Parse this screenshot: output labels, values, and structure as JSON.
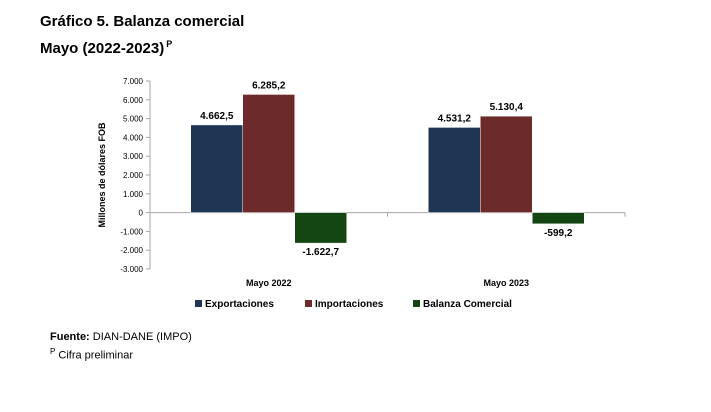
{
  "title": "Gráfico 5. Balanza comercial",
  "subtitle": "Mayo (2022-2023)",
  "subtitle_sup": "P",
  "footer": {
    "source_label": "Fuente:",
    "source_text": "DIAN-DANE (IMPO)",
    "note_sup": "P",
    "note_text": "Cifra preliminar"
  },
  "colors": {
    "Exportaciones": "#1f3554",
    "Importaciones": "#6d2a2a",
    "Balanza Comercial": "#134612"
  },
  "chart_data": {
    "type": "bar",
    "categories": [
      "Mayo 2022",
      "Mayo 2023"
    ],
    "series": [
      {
        "name": "Exportaciones",
        "values": [
          4662.5,
          4531.2
        ],
        "labels": [
          "4.662,5",
          "4.531,2"
        ]
      },
      {
        "name": "Importaciones",
        "values": [
          6285.2,
          5130.4
        ],
        "labels": [
          "6.285,2",
          "5.130,4"
        ]
      },
      {
        "name": "Balanza Comercial",
        "values": [
          -1622.7,
          -599.2
        ],
        "labels": [
          "-1.622,7",
          "-599,2"
        ]
      }
    ],
    "ylabel": "Millones de dólares FOB",
    "ylim": [
      -3000,
      7000
    ],
    "yticks": [
      7000,
      6000,
      5000,
      4000,
      3000,
      2000,
      1000,
      0,
      -1000,
      -2000,
      -3000
    ],
    "ytick_labels": [
      "7.000",
      "6.000",
      "5.000",
      "4.000",
      "3.000",
      "2.000",
      "1.000",
      "0",
      "-1.000",
      "-2.000",
      "-3.000"
    ],
    "legend_position": "bottom",
    "grid": false
  }
}
